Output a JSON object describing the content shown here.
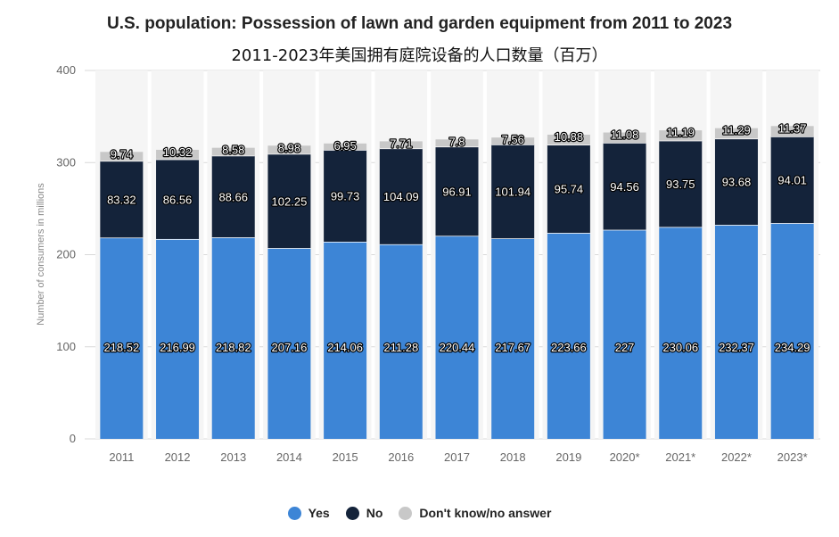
{
  "chart_data": {
    "type": "bar",
    "stacked": true,
    "title": "U.S. population: Possession of lawn and garden equipment from 2011 to 2023",
    "subtitle": "2011-2023年美国拥有庭院设备的人口数量（百万）",
    "xlabel": "",
    "ylabel": "Number of consumers in millions",
    "ylim": [
      0,
      400
    ],
    "yticks": [
      0,
      100,
      200,
      300,
      400
    ],
    "grid": true,
    "legend_position": "bottom",
    "categories": [
      "2011",
      "2012",
      "2013",
      "2014",
      "2015",
      "2016",
      "2017",
      "2018",
      "2019",
      "2020*",
      "2021*",
      "2022*",
      "2023*"
    ],
    "series": [
      {
        "name": "Yes",
        "color": "#3d85d6",
        "values": [
          218.52,
          216.99,
          218.82,
          207.16,
          214.06,
          211.28,
          220.44,
          217.67,
          223.66,
          227,
          230.06,
          232.37,
          234.29
        ],
        "labels": [
          "218.52",
          "216.99",
          "218.82",
          "207.16",
          "214.06",
          "211.28",
          "220.44",
          "217.67",
          "223.66",
          "227",
          "230.06",
          "232.37",
          "234.29"
        ]
      },
      {
        "name": "No",
        "color": "#14233a",
        "values": [
          83.32,
          86.56,
          88.66,
          102.25,
          99.73,
          104.09,
          96.91,
          101.94,
          95.74,
          94.56,
          93.75,
          93.68,
          94.01
        ],
        "labels": [
          "83.32",
          "86.56",
          "88.66",
          "102.25",
          "99.73",
          "104.09",
          "96.91",
          "101.94",
          "95.74",
          "94.56",
          "93.75",
          "93.68",
          "94.01"
        ]
      },
      {
        "name": "Don't know/no answer",
        "color": "#c8c8c8",
        "values": [
          9.74,
          10.32,
          8.58,
          8.98,
          6.95,
          7.71,
          7.8,
          7.56,
          10.88,
          11.08,
          11.19,
          11.29,
          11.37
        ],
        "labels": [
          "9.74",
          "10.32",
          "8.58",
          "8.98",
          "6.95",
          "7.71",
          "7.8",
          "7.56",
          "10.88",
          "11.08",
          "11.19",
          "11.29",
          "11.37"
        ]
      }
    ]
  },
  "legend": {
    "yes_label": "Yes",
    "no_label": "No",
    "dk_label": "Don't know/no answer"
  }
}
